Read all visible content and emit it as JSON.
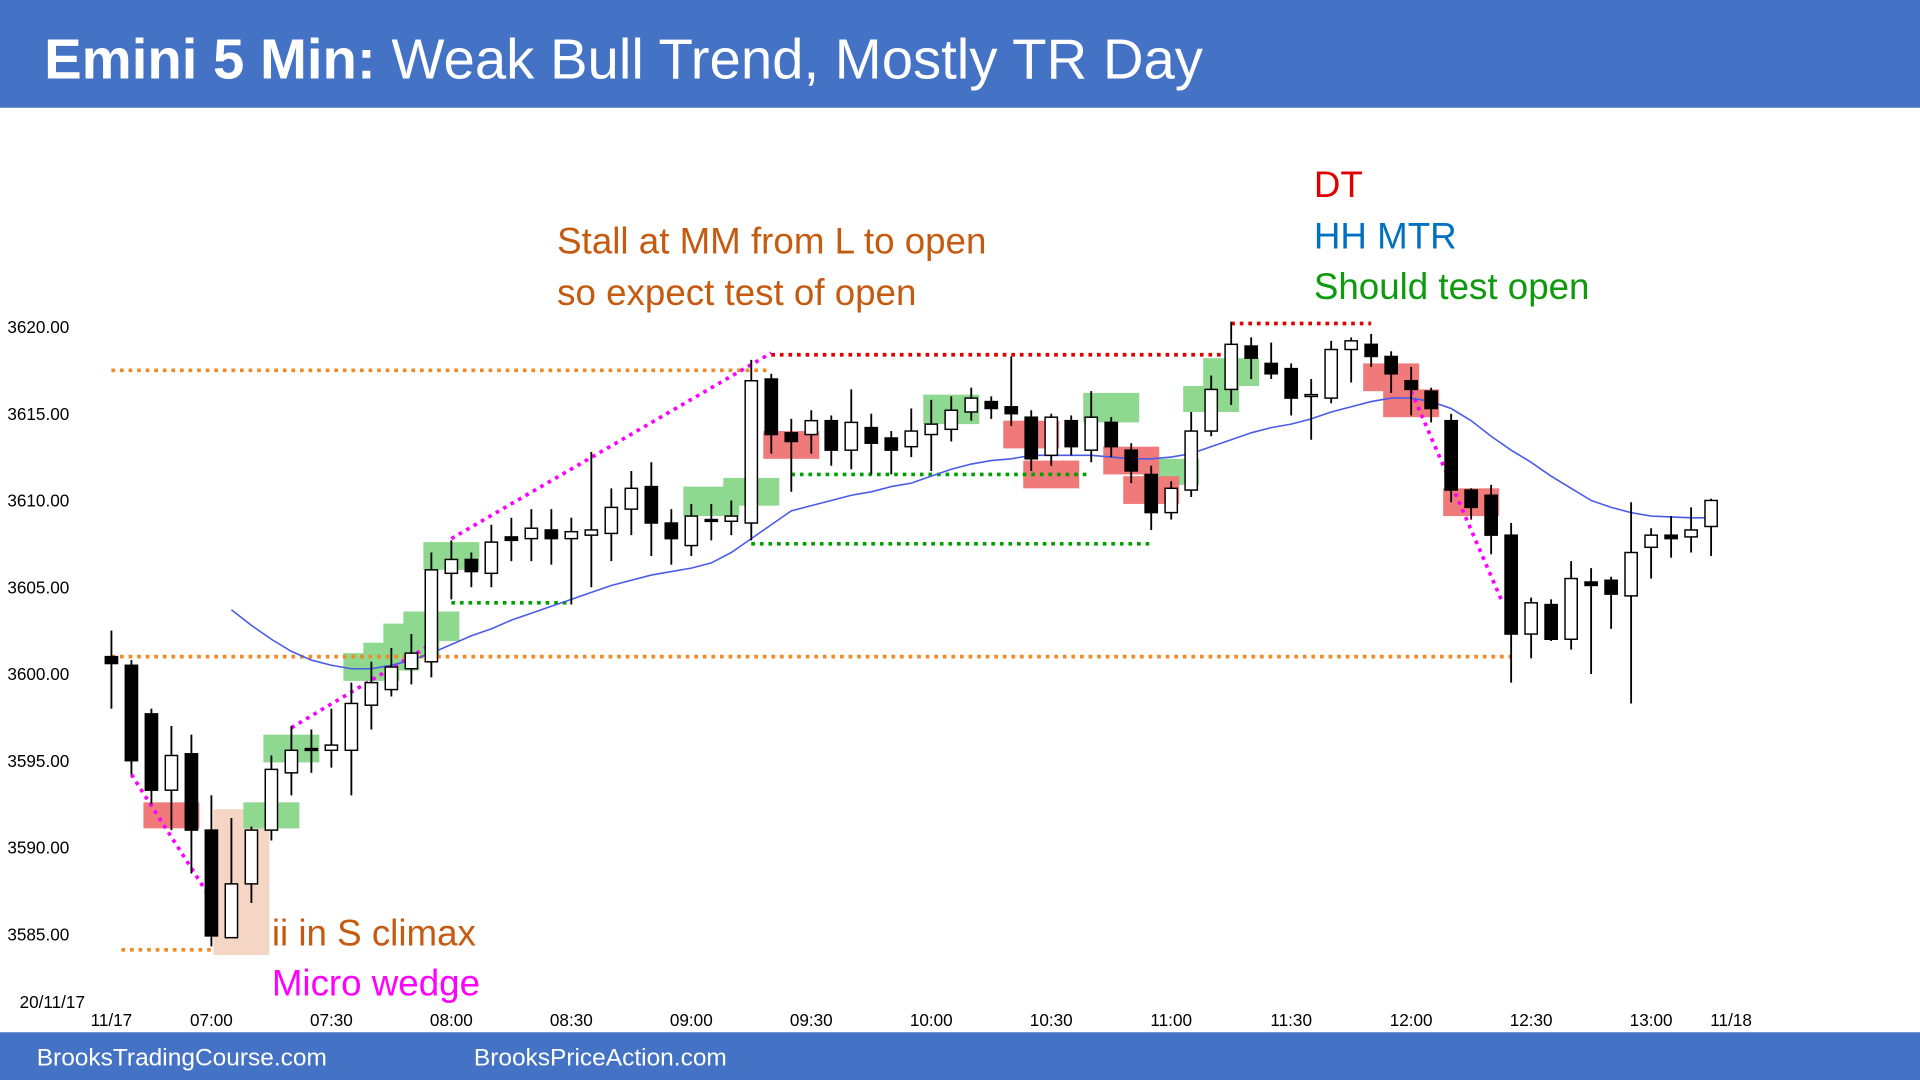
{
  "header": {
    "title_bold": "Emini 5 Min:",
    "title_rest": "Weak Bull Trend, Mostly TR Day",
    "color": "#4472c4"
  },
  "footer": {
    "left": "BrooksTradingCourse.com",
    "right": "BrooksPriceAction.com"
  },
  "chart_data": {
    "type": "candlestick",
    "date_label": "20/11/17",
    "categories": [
      "11/17",
      null,
      null,
      null,
      null,
      "07:00",
      null,
      null,
      null,
      null,
      null,
      "07:30",
      null,
      null,
      null,
      null,
      null,
      "08:00",
      null,
      null,
      null,
      null,
      null,
      "08:30",
      null,
      null,
      null,
      null,
      null,
      "09:00",
      null,
      null,
      null,
      null,
      null,
      "09:30",
      null,
      null,
      null,
      null,
      null,
      "10:00",
      null,
      null,
      null,
      null,
      null,
      "10:30",
      null,
      null,
      null,
      null,
      null,
      "11:00",
      null,
      null,
      null,
      null,
      null,
      "11:30",
      null,
      null,
      null,
      null,
      null,
      "12:00",
      null,
      null,
      null,
      null,
      null,
      "12:30",
      null,
      null,
      null,
      null,
      null,
      "13:00",
      null,
      null,
      null,
      "11/18"
    ],
    "open": [
      3601,
      3600.5,
      3597.7,
      3593.3,
      3595.4,
      3591,
      3584.8,
      3587.9,
      3591,
      3594.3,
      3595.7,
      3595.6,
      3595.6,
      3598.2,
      3599.1,
      3600.3,
      3600.7,
      3605.8,
      3606.6,
      3605.8,
      3607.9,
      3607.8,
      3608.3,
      3607.8,
      3608,
      3608.1,
      3609.5,
      3610.8,
      3608.7,
      3607.4,
      3608.9,
      3608.8,
      3608.7,
      3617,
      3613.9,
      3613.8,
      3614.6,
      3612.9,
      3614.2,
      3613.6,
      3613.1,
      3613.8,
      3614.1,
      3615.1,
      3615.7,
      3615.4,
      3614.8,
      3612.6,
      3614.6,
      3612.9,
      3614.5,
      3612.9,
      3611.5,
      3609.3,
      3610.6,
      3614,
      3616.4,
      3618.9,
      3617.9,
      3617.6,
      3616,
      3615.9,
      3618.7,
      3619,
      3618.3,
      3616.9,
      3616.3,
      3614.6,
      3610.6,
      3610.3,
      3608,
      3602.3,
      3604,
      3602,
      3605.3,
      3605.4,
      3604.5,
      3607.3,
      3608,
      3607.9,
      3608.5,
      null
    ],
    "high": [
      3602.5,
      3600.8,
      3598,
      3597,
      3596.5,
      3593,
      3591.7,
      3591.2,
      3595.3,
      3597,
      3596.8,
      3598,
      3599.5,
      3600.7,
      3601.5,
      3602.3,
      3607,
      3607.7,
      3607,
      3608.6,
      3609,
      3609.5,
      3609.5,
      3609,
      3612.8,
      3610.7,
      3611.7,
      3612.2,
      3609.5,
      3609.8,
      3609.8,
      3610,
      3618.1,
      3617.3,
      3614.7,
      3615.2,
      3614.9,
      3616.4,
      3615,
      3614,
      3615.3,
      3615.8,
      3616,
      3616.5,
      3616,
      3618.3,
      3615.2,
      3615,
      3614.9,
      3616.3,
      3614.8,
      3613.3,
      3612,
      3611.1,
      3615.1,
      3617.2,
      3620.3,
      3619.4,
      3619.1,
      3617.9,
      3617,
      3619.2,
      3619.4,
      3619.6,
      3618.6,
      3617.7,
      3616.5,
      3615,
      3610.7,
      3610.9,
      3608.7,
      3604.4,
      3604.3,
      3606.5,
      3606.1,
      3605.6,
      3609.9,
      3608.4,
      3609.1,
      3609.6,
      3610.1,
      null
    ],
    "low": [
      3598,
      3594.2,
      3592.5,
      3591,
      3588.5,
      3584.3,
      3584.8,
      3586.8,
      3590.4,
      3593,
      3594.3,
      3594.6,
      3593,
      3596.8,
      3598.7,
      3599.4,
      3599.8,
      3604.3,
      3605,
      3605,
      3606.5,
      3606.5,
      3606.3,
      3604,
      3605,
      3606.5,
      3608,
      3606.8,
      3606.3,
      3606.8,
      3607.7,
      3608,
      3607.7,
      3612.7,
      3610.5,
      3612.7,
      3612,
      3611.8,
      3611.5,
      3611.5,
      3612.5,
      3611.7,
      3613.4,
      3614.6,
      3614.7,
      3614.3,
      3611.7,
      3612,
      3612.6,
      3612.2,
      3612.5,
      3611,
      3608.3,
      3608.9,
      3610.2,
      3613.7,
      3615.5,
      3617,
      3617,
      3614.9,
      3613.5,
      3615.6,
      3616.8,
      3617.7,
      3616.2,
      3614.9,
      3614.5,
      3609.9,
      3608.9,
      3606.9,
      3599.5,
      3600.9,
      3601.9,
      3601.4,
      3600,
      3602.6,
      3598.3,
      3605.5,
      3606.7,
      3607,
      3606.8,
      null
    ],
    "close": [
      3600.6,
      3595,
      3593.3,
      3595.3,
      3591,
      3584.9,
      3587.9,
      3591,
      3594.5,
      3595.6,
      3595.6,
      3595.9,
      3598.3,
      3599.5,
      3600.4,
      3601.2,
      3606,
      3606.6,
      3605.9,
      3607.6,
      3607.7,
      3608.4,
      3607.8,
      3608.2,
      3608.3,
      3609.6,
      3610.7,
      3608.7,
      3607.8,
      3609.1,
      3608.8,
      3609.1,
      3616.9,
      3613.8,
      3613.4,
      3614.6,
      3612.9,
      3614.5,
      3613.3,
      3612.9,
      3614,
      3614.4,
      3615.2,
      3615.9,
      3615.3,
      3615,
      3612.4,
      3614.8,
      3613.1,
      3614.8,
      3613.1,
      3611.7,
      3609.3,
      3610.7,
      3614,
      3616.4,
      3619,
      3618.2,
      3617.3,
      3615.9,
      3616.1,
      3618.7,
      3619.2,
      3618.3,
      3617.3,
      3616.4,
      3615.3,
      3610.6,
      3609.6,
      3608,
      3602.3,
      3604.1,
      3602,
      3605.5,
      3605.1,
      3604.6,
      3607,
      3608,
      3607.8,
      3608.3,
      3610,
      null
    ],
    "ema": [
      null,
      null,
      null,
      null,
      null,
      null,
      3603.7,
      3602.8,
      3602,
      3601.3,
      3600.8,
      3600.5,
      3600.3,
      3600.3,
      3600.5,
      3600.8,
      3601.2,
      3601.7,
      3602.2,
      3602.6,
      3603.1,
      3603.5,
      3603.9,
      3604.3,
      3604.7,
      3605.1,
      3605.4,
      3605.7,
      3605.9,
      3606.1,
      3606.4,
      3607,
      3607.8,
      3608.6,
      3609.4,
      3609.7,
      3610,
      3610.3,
      3610.5,
      3610.8,
      3611,
      3611.4,
      3611.8,
      3612.1,
      3612.3,
      3612.4,
      3612.6,
      3612.6,
      3612.6,
      3612.6,
      3612.5,
      3612.4,
      3612.4,
      3612.5,
      3612.7,
      3613.1,
      3613.5,
      3613.9,
      3614.2,
      3614.4,
      3614.7,
      3615.1,
      3615.4,
      3615.7,
      3615.9,
      3615.9,
      3615.7,
      3615.3,
      3614.6,
      3613.7,
      3612.9,
      3612.2,
      3611.4,
      3610.7,
      3610,
      3609.6,
      3609.3,
      3609.1,
      3609.05,
      3609,
      3609,
      null
    ],
    "ema_color": "#4a5be8",
    "up_color": "#ffffff",
    "down_color": "#000000",
    "ylim": [
      3581,
      3632
    ],
    "yticks": [
      {
        "value": 3585,
        "label": "3585.00"
      },
      {
        "value": 3590,
        "label": "3590.00"
      },
      {
        "value": 3595,
        "label": "3595.00"
      },
      {
        "value": 3600,
        "label": "3600.00"
      },
      {
        "value": 3605,
        "label": "3605.00"
      },
      {
        "value": 3610,
        "label": "3610.00"
      },
      {
        "value": 3615,
        "label": "3615.00"
      },
      {
        "value": 3620,
        "label": "3620.00"
      }
    ],
    "levels": [
      {
        "color": "#f08a24",
        "from_bar": 0,
        "to_bar": 33,
        "from_price": 3617.5,
        "to_price": 3617.5
      },
      {
        "color": "#f08a24",
        "from_bar": 0,
        "to_bar": 70,
        "from_price": 3601,
        "to_price": 3601
      },
      {
        "color": "#f08a24",
        "from_bar": 0.5,
        "to_bar": 5,
        "from_price": 3584.1,
        "to_price": 3584.1
      },
      {
        "color": "#e00000",
        "from_bar": 33,
        "to_bar": 56,
        "from_price": 3618.4,
        "to_price": 3618.4
      },
      {
        "color": "#e00000",
        "from_bar": 56,
        "to_bar": 63,
        "from_price": 3620.2,
        "to_price": 3620.2
      },
      {
        "color": "#00a000",
        "from_bar": 17,
        "to_bar": 23,
        "from_price": 3604.1,
        "to_price": 3604.1
      },
      {
        "color": "#00a000",
        "from_bar": 34,
        "to_bar": 49,
        "from_price": 3611.5,
        "to_price": 3611.5
      },
      {
        "color": "#00a000",
        "from_bar": 32,
        "to_bar": 52,
        "from_price": 3607.5,
        "to_price": 3607.5
      },
      {
        "color": "#ff00ff",
        "from_bar": 17,
        "to_bar": 33,
        "from_price": 3607.8,
        "to_price": 3618.5
      },
      {
        "color": "#ff00ff",
        "from_bar": 9,
        "to_bar": 16,
        "from_price": 3596.9,
        "to_price": 3601.7
      },
      {
        "color": "#ff00ff",
        "from_bar": 1,
        "to_bar": 5,
        "from_price": 3594.2,
        "to_price": 3587
      },
      {
        "color": "#ff00ff",
        "from_bar": 65,
        "to_bar": 69.5,
        "from_price": 3616.3,
        "to_price": 3604.3
      }
    ],
    "boxes": [
      {
        "color": "#f5d5c3",
        "bar": 6.5,
        "low": 3583.8,
        "high": 3592.2
      },
      {
        "color": "#8fd88f",
        "bar": 8,
        "low": 3591.1,
        "high": 3592.6
      },
      {
        "color": "#8fd88f",
        "bar": 9,
        "low": 3594.9,
        "high": 3596.5
      },
      {
        "color": "#8fd88f",
        "bar": 13,
        "low": 3599.6,
        "high": 3601.2
      },
      {
        "color": "#8fd88f",
        "bar": 14,
        "low": 3600.2,
        "high": 3601.8
      },
      {
        "color": "#8fd88f",
        "bar": 15,
        "low": 3601.1,
        "high": 3602.9
      },
      {
        "color": "#8fd88f",
        "bar": 16,
        "low": 3601.9,
        "high": 3603.6
      },
      {
        "color": "#8fd88f",
        "bar": 17,
        "low": 3606,
        "high": 3607.6
      },
      {
        "color": "#8fd88f",
        "bar": 30,
        "low": 3609.1,
        "high": 3610.8
      },
      {
        "color": "#8fd88f",
        "bar": 32,
        "low": 3609.7,
        "high": 3611.3
      },
      {
        "color": "#8fd88f",
        "bar": 42,
        "low": 3614.4,
        "high": 3616.1
      },
      {
        "color": "#8fd88f",
        "bar": 50,
        "low": 3614.5,
        "high": 3616.2
      },
      {
        "color": "#8fd88f",
        "bar": 53,
        "low": 3610.9,
        "high": 3612.4
      },
      {
        "color": "#8fd88f",
        "bar": 55,
        "low": 3615.1,
        "high": 3616.6
      },
      {
        "color": "#8fd88f",
        "bar": 56,
        "low": 3616.6,
        "high": 3618.2
      },
      {
        "color": "#f07a7a",
        "bar": 3,
        "low": 3591.1,
        "high": 3592.6
      },
      {
        "color": "#f07a7a",
        "bar": 34,
        "low": 3612.4,
        "high": 3614
      },
      {
        "color": "#f07a7a",
        "bar": 46,
        "low": 3613,
        "high": 3614.6
      },
      {
        "color": "#f07a7a",
        "bar": 47,
        "low": 3610.7,
        "high": 3612.3
      },
      {
        "color": "#f07a7a",
        "bar": 51,
        "low": 3611.5,
        "high": 3613.1
      },
      {
        "color": "#f07a7a",
        "bar": 52,
        "low": 3609.8,
        "high": 3611.4
      },
      {
        "color": "#f07a7a",
        "bar": 64,
        "low": 3616.3,
        "high": 3617.9
      },
      {
        "color": "#f07a7a",
        "bar": 65,
        "low": 3614.8,
        "high": 3616.4
      },
      {
        "color": "#f07a7a",
        "bar": 68,
        "low": 3609.1,
        "high": 3610.7
      }
    ],
    "annotations": [
      {
        "text": "Stall at MM from L to open",
        "color": "#c55a11"
      },
      {
        "text": "so expect test of open",
        "color": "#c55a11"
      },
      {
        "text": "DT",
        "color": "#e00000"
      },
      {
        "text": "HH MTR",
        "color": "#0070c0"
      },
      {
        "text": "Should test open",
        "color": "#0d9a0d"
      },
      {
        "text": "ii in S climax",
        "color": "#c55a11"
      },
      {
        "text": "Micro wedge",
        "color": "#ff00ff"
      }
    ]
  }
}
